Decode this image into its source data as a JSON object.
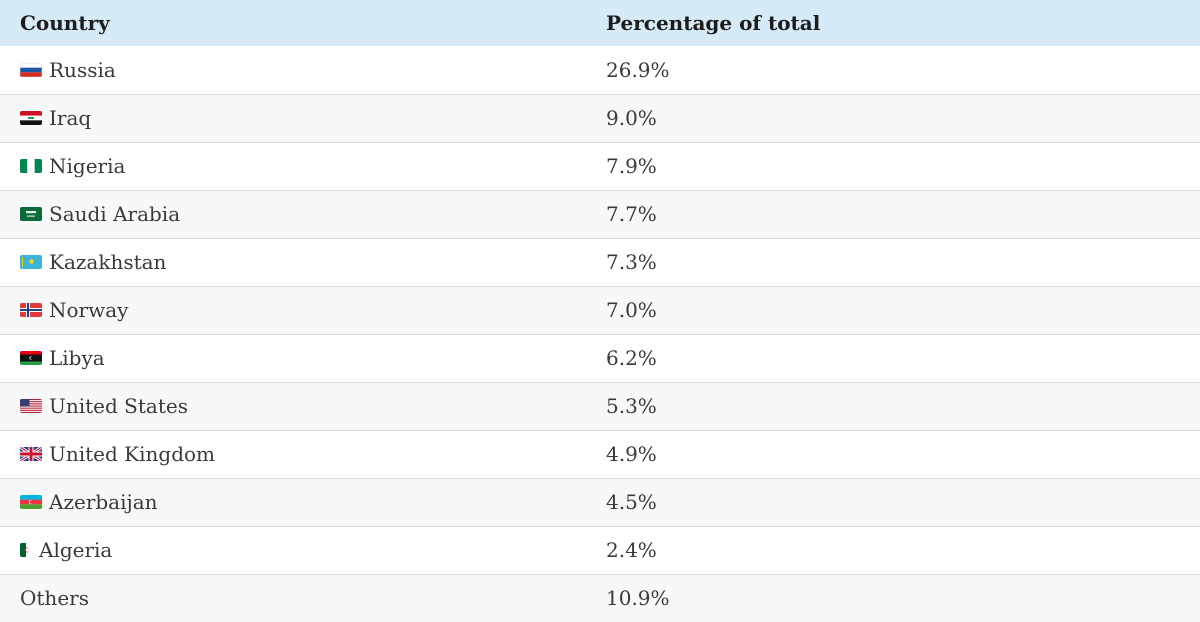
{
  "table": {
    "headers": {
      "country": "Country",
      "percentage": "Percentage of total"
    },
    "rows": [
      {
        "country": "Russia",
        "percentage": "26.9%",
        "flag": "russia-flag-icon"
      },
      {
        "country": "Iraq",
        "percentage": "9.0%",
        "flag": "iraq-flag-icon"
      },
      {
        "country": "Nigeria",
        "percentage": "7.9%",
        "flag": "nigeria-flag-icon"
      },
      {
        "country": "Saudi Arabia",
        "percentage": "7.7%",
        "flag": "saudi-arabia-flag-icon"
      },
      {
        "country": "Kazakhstan",
        "percentage": "7.3%",
        "flag": "kazakhstan-flag-icon"
      },
      {
        "country": "Norway",
        "percentage": "7.0%",
        "flag": "norway-flag-icon"
      },
      {
        "country": "Libya",
        "percentage": "6.2%",
        "flag": "libya-flag-icon"
      },
      {
        "country": "United States",
        "percentage": "5.3%",
        "flag": "united-states-flag-icon"
      },
      {
        "country": "United Kingdom",
        "percentage": "4.9%",
        "flag": "united-kingdom-flag-icon"
      },
      {
        "country": "Azerbaijan",
        "percentage": "4.5%",
        "flag": "azerbaijan-flag-icon"
      },
      {
        "country": "Algeria",
        "percentage": "2.4%",
        "flag": "algeria-flag-icon"
      },
      {
        "country": "Others",
        "percentage": "10.9%",
        "flag": null
      }
    ]
  },
  "colors": {
    "header_background": "#d6eaf8",
    "row_divider": "#dcdcdc",
    "alt_row_background": "#f8f8f8"
  }
}
